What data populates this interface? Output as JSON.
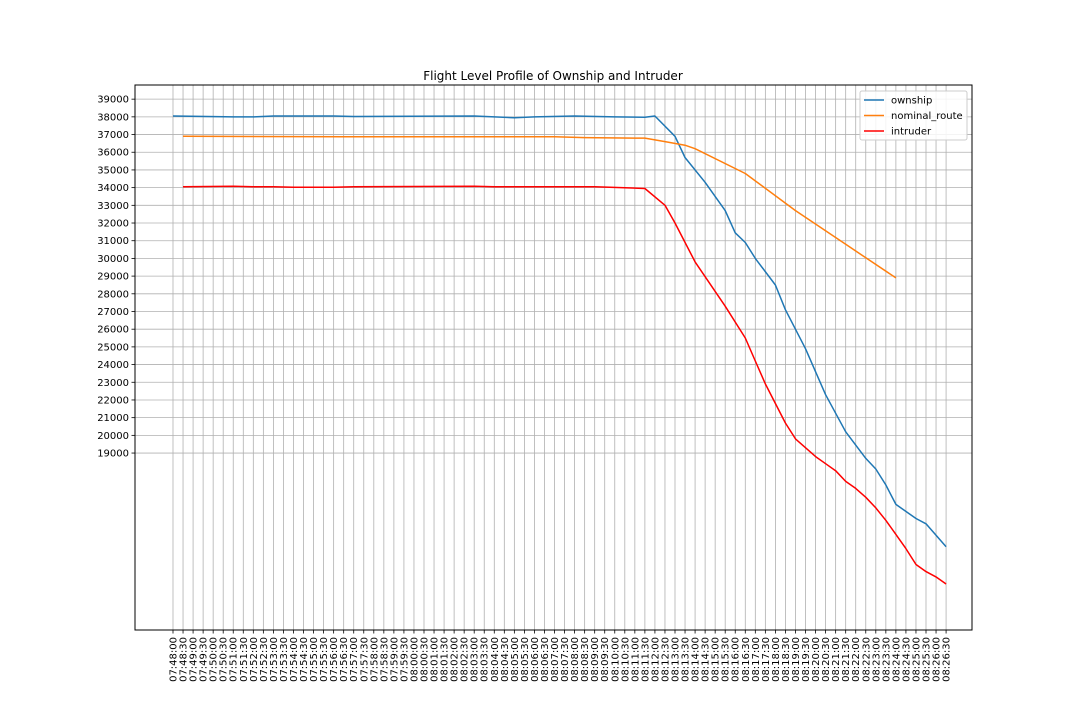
{
  "chart_data": {
    "type": "line",
    "title": "Flight Level Profile of Ownship and Intruder",
    "xlabel": "",
    "ylabel": "",
    "grid": true,
    "legend_position": "top-right",
    "ylim": [
      9000,
      39800
    ],
    "yticks": [
      19000,
      20000,
      21000,
      22000,
      23000,
      24000,
      25000,
      26000,
      27000,
      28000,
      29000,
      30000,
      31000,
      32000,
      33000,
      34000,
      35000,
      36000,
      37000,
      38000,
      39000
    ],
    "x": [
      "07:48:00",
      "07:48:30",
      "07:49:00",
      "07:49:30",
      "07:50:00",
      "07:50:30",
      "07:51:00",
      "07:51:30",
      "07:52:00",
      "07:52:30",
      "07:53:00",
      "07:53:30",
      "07:54:00",
      "07:54:30",
      "07:55:00",
      "07:55:30",
      "07:56:00",
      "07:56:30",
      "07:57:00",
      "07:57:30",
      "07:58:00",
      "07:58:30",
      "07:59:00",
      "07:59:30",
      "08:00:00",
      "08:00:30",
      "08:01:00",
      "08:01:30",
      "08:02:00",
      "08:02:30",
      "08:03:00",
      "08:03:30",
      "08:04:00",
      "08:04:30",
      "08:05:00",
      "08:05:30",
      "08:06:00",
      "08:06:30",
      "08:07:00",
      "08:07:30",
      "08:08:00",
      "08:08:30",
      "08:09:00",
      "08:09:30",
      "08:10:00",
      "08:10:30",
      "08:11:00",
      "08:11:30",
      "08:12:00",
      "08:12:30",
      "08:13:00",
      "08:13:30",
      "08:14:00",
      "08:14:30",
      "08:15:00",
      "08:15:30",
      "08:16:00",
      "08:16:30",
      "08:17:00",
      "08:17:30",
      "08:18:00",
      "08:18:30",
      "08:19:00",
      "08:19:30",
      "08:20:00",
      "08:20:30",
      "08:21:00",
      "08:21:30",
      "08:22:00",
      "08:22:30",
      "08:23:00",
      "08:23:30",
      "08:24:00",
      "08:24:30",
      "08:25:00",
      "08:25:30",
      "08:26:00",
      "08:26:30"
    ],
    "series": [
      {
        "name": "ownship",
        "color": "#1f77b4",
        "points": [
          [
            "07:48:00",
            38050
          ],
          [
            "07:51:00",
            38000
          ],
          [
            "07:52:00",
            38000
          ],
          [
            "07:53:00",
            38050
          ],
          [
            "07:56:00",
            38050
          ],
          [
            "07:57:00",
            38020
          ],
          [
            "08:03:00",
            38050
          ],
          [
            "08:04:00",
            38000
          ],
          [
            "08:05:00",
            37950
          ],
          [
            "08:06:00",
            38000
          ],
          [
            "08:08:00",
            38050
          ],
          [
            "08:10:00",
            38000
          ],
          [
            "08:11:30",
            37980
          ],
          [
            "08:12:00",
            38050
          ],
          [
            "08:13:00",
            36900
          ],
          [
            "08:13:30",
            35700
          ],
          [
            "08:14:30",
            34300
          ],
          [
            "08:15:30",
            32700
          ],
          [
            "08:16:00",
            31450
          ],
          [
            "08:16:30",
            30900
          ],
          [
            "08:17:00",
            30000
          ],
          [
            "08:18:00",
            28500
          ],
          [
            "08:18:30",
            27100
          ],
          [
            "08:19:30",
            24900
          ],
          [
            "08:20:30",
            22300
          ],
          [
            "08:21:30",
            20200
          ],
          [
            "08:22:30",
            18700
          ],
          [
            "08:23:00",
            18100
          ],
          [
            "08:23:30",
            17200
          ],
          [
            "08:24:00",
            16100
          ],
          [
            "08:25:00",
            15300
          ],
          [
            "08:25:30",
            15000
          ],
          [
            "08:26:30",
            13700
          ]
        ]
      },
      {
        "name": "nominal_route",
        "color": "#ff7f0e",
        "points": [
          [
            "07:48:30",
            36900
          ],
          [
            "07:56:30",
            36870
          ],
          [
            "08:07:00",
            36870
          ],
          [
            "08:08:30",
            36830
          ],
          [
            "08:11:00",
            36800
          ],
          [
            "08:11:30",
            36800
          ],
          [
            "08:12:30",
            36600
          ],
          [
            "08:13:30",
            36400
          ],
          [
            "08:14:00",
            36200
          ],
          [
            "08:16:30",
            34800
          ],
          [
            "08:19:00",
            32700
          ],
          [
            "08:21:30",
            30800
          ],
          [
            "08:24:00",
            28900
          ]
        ]
      },
      {
        "name": "intruder",
        "color": "#ff0000",
        "points": [
          [
            "07:48:30",
            34050
          ],
          [
            "07:51:00",
            34080
          ],
          [
            "07:52:00",
            34050
          ],
          [
            "07:53:00",
            34050
          ],
          [
            "07:54:00",
            34020
          ],
          [
            "07:56:00",
            34020
          ],
          [
            "07:57:00",
            34050
          ],
          [
            "08:03:00",
            34080
          ],
          [
            "08:04:00",
            34050
          ],
          [
            "08:09:00",
            34050
          ],
          [
            "08:11:30",
            33950
          ],
          [
            "08:12:30",
            33000
          ],
          [
            "08:13:00",
            32000
          ],
          [
            "08:14:00",
            29800
          ],
          [
            "08:15:30",
            27300
          ],
          [
            "08:16:30",
            25500
          ],
          [
            "08:17:00",
            24200
          ],
          [
            "08:17:30",
            22900
          ],
          [
            "08:18:30",
            20700
          ],
          [
            "08:19:00",
            19800
          ],
          [
            "08:20:00",
            18800
          ],
          [
            "08:20:30",
            18400
          ],
          [
            "08:21:00",
            18000
          ],
          [
            "08:21:30",
            17400
          ],
          [
            "08:22:00",
            17000
          ],
          [
            "08:22:30",
            16500
          ],
          [
            "08:23:00",
            15900
          ],
          [
            "08:23:30",
            15200
          ],
          [
            "08:24:00",
            14400
          ],
          [
            "08:24:30",
            13600
          ],
          [
            "08:25:00",
            12700
          ],
          [
            "08:25:30",
            12300
          ],
          [
            "08:26:00",
            12000
          ],
          [
            "08:26:30",
            11600
          ],
          [
            "08:27:00",
            11200
          ]
        ]
      }
    ]
  }
}
